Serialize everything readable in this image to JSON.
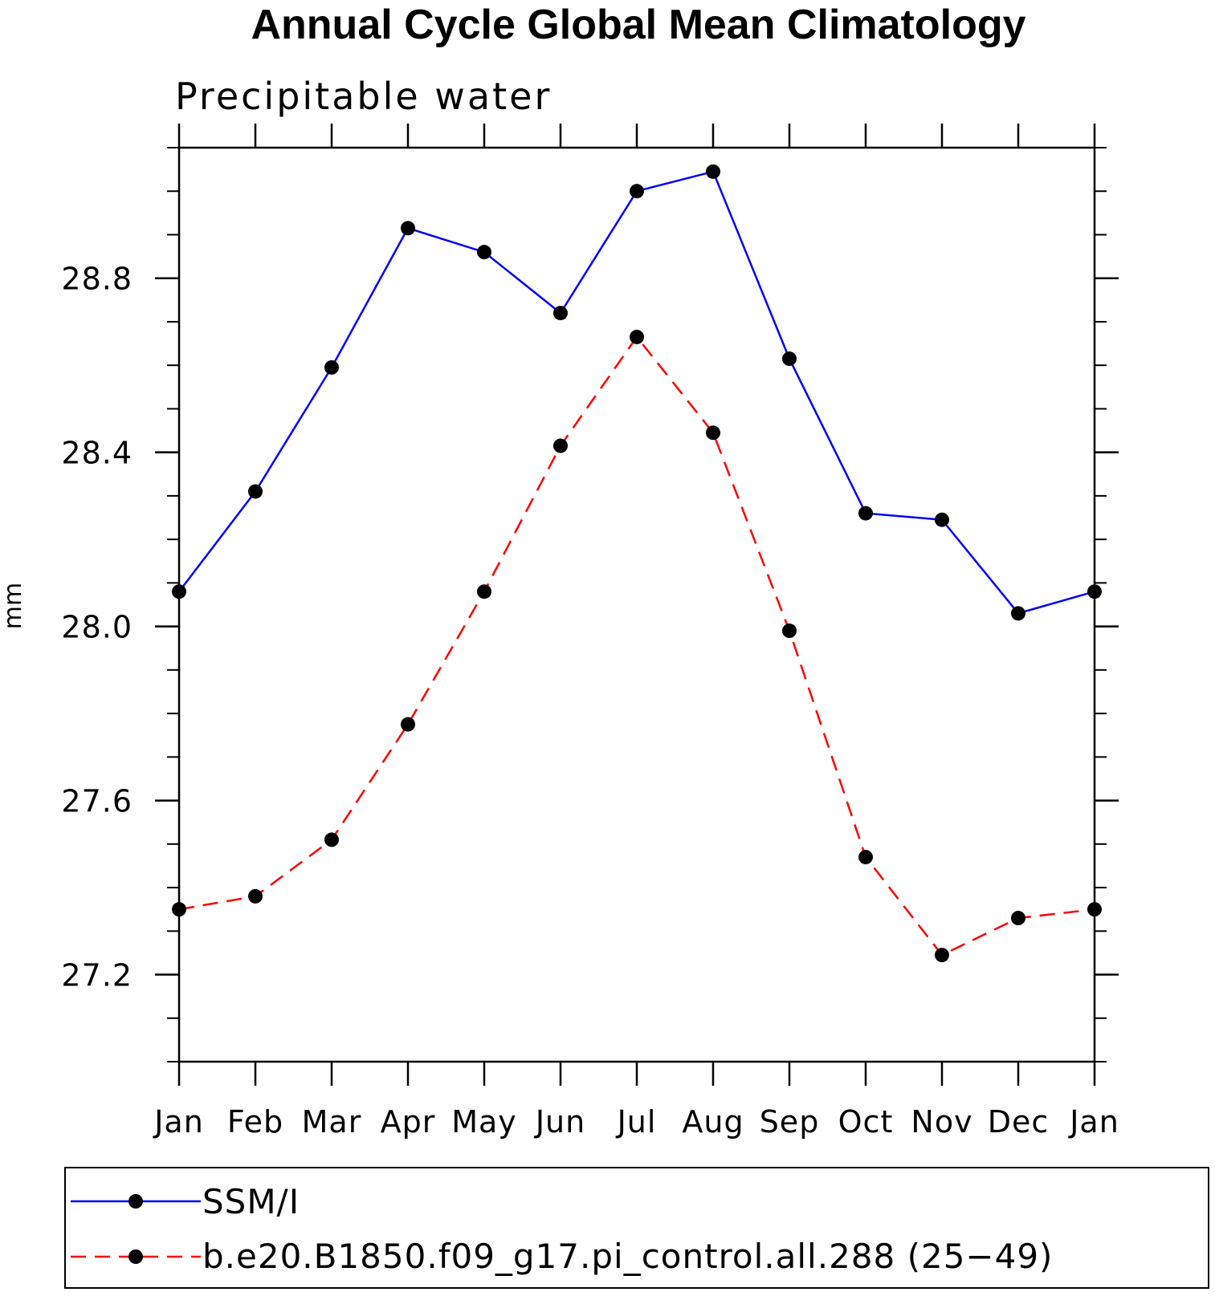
{
  "chart_data": {
    "type": "line",
    "title": "Annual Cycle Global Mean Climatology",
    "subtitle": "Precipitable water",
    "xlabel": "",
    "ylabel": "mm",
    "categories": [
      "Jan",
      "Feb",
      "Mar",
      "Apr",
      "May",
      "Jun",
      "Jul",
      "Aug",
      "Sep",
      "Oct",
      "Nov",
      "Dec",
      "Jan"
    ],
    "ylim": [
      27.0,
      29.1
    ],
    "yticks": [
      27.2,
      27.6,
      28.0,
      28.4,
      28.8
    ],
    "ytick_labels": [
      "27.2",
      "27.6",
      "28.0",
      "28.4",
      "28.8"
    ],
    "grid": false,
    "legend_position": "bottom",
    "series": [
      {
        "name": "SSM/I",
        "color": "#0000ff",
        "line_style": "solid",
        "marker": "filled-circle",
        "values": [
          28.08,
          28.31,
          28.595,
          28.915,
          28.86,
          28.72,
          29.0,
          29.045,
          28.615,
          28.26,
          28.245,
          28.03,
          28.08
        ]
      },
      {
        "name": "b.e20.B1850.f09_g17.pi_control.all.288 (25−49)",
        "color": "#ff0000",
        "line_style": "dashed",
        "marker": "filled-circle",
        "values": [
          27.35,
          27.38,
          27.51,
          27.775,
          28.08,
          28.415,
          28.665,
          28.445,
          27.99,
          27.47,
          27.245,
          27.33,
          27.35
        ]
      }
    ]
  }
}
